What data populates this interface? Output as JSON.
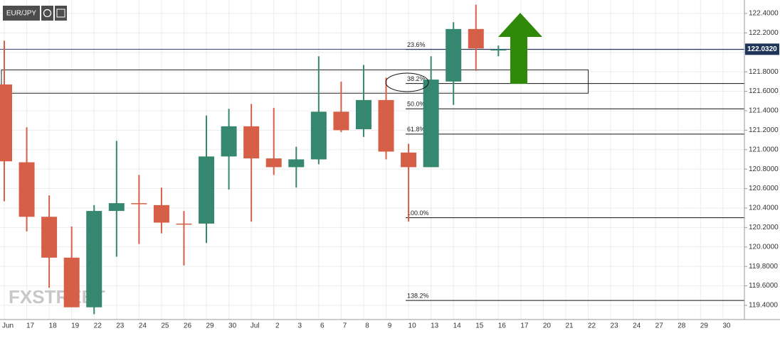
{
  "chart_data": {
    "type": "candlestick",
    "symbol": "EUR/JPY",
    "watermark": "FXSTREET",
    "categories": [
      "Jun",
      "17",
      "18",
      "19",
      "22",
      "23",
      "24",
      "25",
      "26",
      "29",
      "30",
      "Jul",
      "2",
      "3",
      "6",
      "7",
      "8",
      "9",
      "10",
      "13",
      "14",
      "15",
      "16",
      "17",
      "20",
      "21",
      "22",
      "23",
      "24",
      "27",
      "28",
      "29",
      "30"
    ],
    "open": [
      121.67,
      120.87,
      120.31,
      119.89,
      119.38,
      120.37,
      120.45,
      120.43,
      120.24,
      120.24,
      120.93,
      121.24,
      120.91,
      120.82,
      120.9,
      121.39,
      121.21,
      121.51,
      120.97,
      120.82,
      121.7,
      122.24,
      122.02,
      null,
      null,
      null,
      null,
      null,
      null,
      null,
      null,
      null,
      null
    ],
    "high": [
      122.12,
      121.23,
      120.53,
      120.21,
      120.43,
      121.09,
      120.74,
      120.61,
      120.37,
      121.35,
      121.42,
      121.47,
      121.43,
      121.03,
      121.96,
      121.7,
      121.87,
      121.74,
      121.06,
      121.96,
      122.31,
      122.49,
      122.07,
      null,
      null,
      null,
      null,
      null,
      null,
      null,
      null,
      null,
      null
    ],
    "low": [
      120.47,
      120.16,
      119.58,
      119.38,
      119.31,
      119.9,
      120.03,
      120.14,
      119.81,
      120.04,
      120.59,
      120.26,
      120.74,
      120.61,
      120.85,
      121.18,
      121.13,
      120.9,
      120.26,
      120.82,
      121.46,
      121.81,
      121.96,
      null,
      null,
      null,
      null,
      null,
      null,
      null,
      null,
      null,
      null
    ],
    "close": [
      120.88,
      120.31,
      119.89,
      119.38,
      120.37,
      120.45,
      120.44,
      120.25,
      120.23,
      120.93,
      121.24,
      120.91,
      120.82,
      120.9,
      121.39,
      121.2,
      121.51,
      120.98,
      120.82,
      121.72,
      122.24,
      122.04,
      122.03,
      null,
      null,
      null,
      null,
      null,
      null,
      null,
      null,
      null,
      null
    ],
    "up_color": "#35876f",
    "down_color": "#d65f48",
    "ylim": [
      119.254,
      122.538
    ],
    "yticks": [
      {
        "value": 119.4,
        "label": "119.4000"
      },
      {
        "value": 119.6,
        "label": "119.6000"
      },
      {
        "value": 119.8,
        "label": "119.8000"
      },
      {
        "value": 120.0,
        "label": "120.0000"
      },
      {
        "value": 120.2,
        "label": "120.2000"
      },
      {
        "value": 120.4,
        "label": "120.4000"
      },
      {
        "value": 120.6,
        "label": "120.6000"
      },
      {
        "value": 120.8,
        "label": "120.8000"
      },
      {
        "value": 121.0,
        "label": "121.0000"
      },
      {
        "value": 121.2,
        "label": "121.2000"
      },
      {
        "value": 121.4,
        "label": "121.4000"
      },
      {
        "value": 121.6,
        "label": "121.6000"
      },
      {
        "value": 121.8,
        "label": "121.8000"
      },
      {
        "value": 122.0,
        "label": "122.0000"
      },
      {
        "value": 122.2,
        "label": "122.2000"
      },
      {
        "value": 122.4,
        "label": "122.4000"
      }
    ],
    "grid": true,
    "fib_levels": [
      {
        "label": "23.6%",
        "value": 122.03
      },
      {
        "label": "38.2%",
        "value": 121.68
      },
      {
        "label": "50.0%",
        "value": 121.42
      },
      {
        "label": "61.8%",
        "value": 121.16
      },
      {
        "label": "100.0%",
        "value": 120.3
      },
      {
        "label": "138.2%",
        "value": 119.45
      }
    ],
    "zone": [
      121.58,
      121.82
    ],
    "last_price": {
      "value": 122.032,
      "label": "122.0320"
    }
  }
}
